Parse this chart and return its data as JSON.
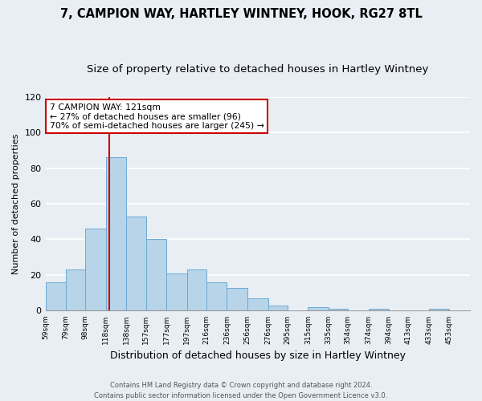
{
  "title": "7, CAMPION WAY, HARTLEY WINTNEY, HOOK, RG27 8TL",
  "subtitle": "Size of property relative to detached houses in Hartley Wintney",
  "xlabel": "Distribution of detached houses by size in Hartley Wintney",
  "ylabel": "Number of detached properties",
  "bin_labels": [
    "59sqm",
    "79sqm",
    "98sqm",
    "118sqm",
    "138sqm",
    "157sqm",
    "177sqm",
    "197sqm",
    "216sqm",
    "236sqm",
    "256sqm",
    "276sqm",
    "295sqm",
    "315sqm",
    "335sqm",
    "354sqm",
    "374sqm",
    "394sqm",
    "413sqm",
    "433sqm",
    "453sqm"
  ],
  "bin_edges": [
    59,
    79,
    98,
    118,
    138,
    157,
    177,
    197,
    216,
    236,
    256,
    276,
    295,
    315,
    335,
    354,
    374,
    394,
    413,
    433,
    453
  ],
  "values": [
    16,
    23,
    46,
    86,
    53,
    40,
    21,
    23,
    16,
    13,
    7,
    3,
    0,
    2,
    1,
    0,
    1,
    0,
    0,
    1
  ],
  "bar_color": "#b8d4e8",
  "bar_edge_color": "#6aaad4",
  "vline_x": 121,
  "vline_color": "#cc0000",
  "ylim": [
    0,
    120
  ],
  "yticks": [
    0,
    20,
    40,
    60,
    80,
    100,
    120
  ],
  "annotation_line1": "7 CAMPION WAY: 121sqm",
  "annotation_line2": "← 27% of detached houses are smaller (96)",
  "annotation_line3": "70% of semi-detached houses are larger (245) →",
  "annotation_box_color": "#cc0000",
  "annotation_box_fill": "#ffffff",
  "footer_line1": "Contains HM Land Registry data © Crown copyright and database right 2024.",
  "footer_line2": "Contains public sector information licensed under the Open Government Licence v3.0.",
  "background_color": "#e8eef4",
  "grid_color": "#ffffff",
  "title_fontsize": 10.5,
  "subtitle_fontsize": 9.5,
  "ylabel_fontsize": 8,
  "xlabel_fontsize": 9
}
